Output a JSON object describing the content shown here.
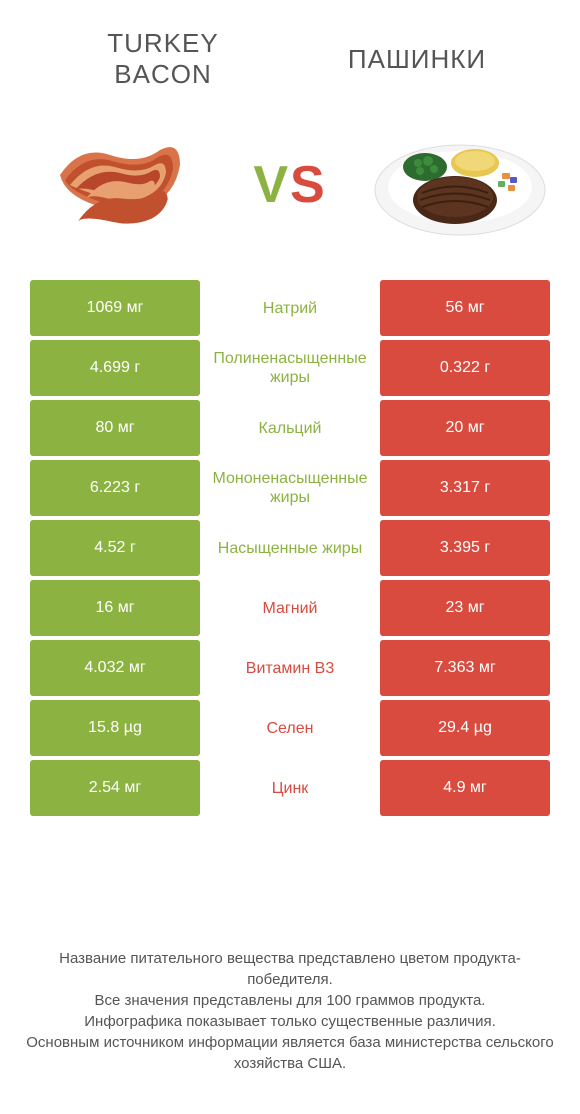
{
  "colors": {
    "green": "#8cb341",
    "red": "#d84b3e",
    "text_gray": "#555555",
    "white": "#ffffff"
  },
  "header": {
    "left_title_line1": "TURKEY",
    "left_title_line2": "BACON",
    "right_title": "ПАШИНКИ"
  },
  "vs": {
    "v": "V",
    "s": "S"
  },
  "rows": [
    {
      "left": "1069 мг",
      "mid": "Натрий",
      "right": "56 мг",
      "winner": "left"
    },
    {
      "left": "4.699 г",
      "mid": "Полиненасыщенные жиры",
      "right": "0.322 г",
      "winner": "left"
    },
    {
      "left": "80 мг",
      "mid": "Кальций",
      "right": "20 мг",
      "winner": "left"
    },
    {
      "left": "6.223 г",
      "mid": "Мононенасыщенные жиры",
      "right": "3.317 г",
      "winner": "left"
    },
    {
      "left": "4.52 г",
      "mid": "Насыщенные жиры",
      "right": "3.395 г",
      "winner": "left"
    },
    {
      "left": "16 мг",
      "mid": "Магний",
      "right": "23 мг",
      "winner": "right"
    },
    {
      "left": "4.032 мг",
      "mid": "Витамин B3",
      "right": "7.363 мг",
      "winner": "right"
    },
    {
      "left": "15.8 µg",
      "mid": "Селен",
      "right": "29.4 µg",
      "winner": "right"
    },
    {
      "left": "2.54 мг",
      "mid": "Цинк",
      "right": "4.9 мг",
      "winner": "right"
    }
  ],
  "footer": {
    "line1": "Название питательного вещества представлено цветом продукта-победителя.",
    "line2": "Все значения представлены для 100 граммов продукта.",
    "line3": "Инфографика показывает только существенные различия.",
    "line4": "Основным источником информации является база министерства сельского хозяйства США."
  }
}
